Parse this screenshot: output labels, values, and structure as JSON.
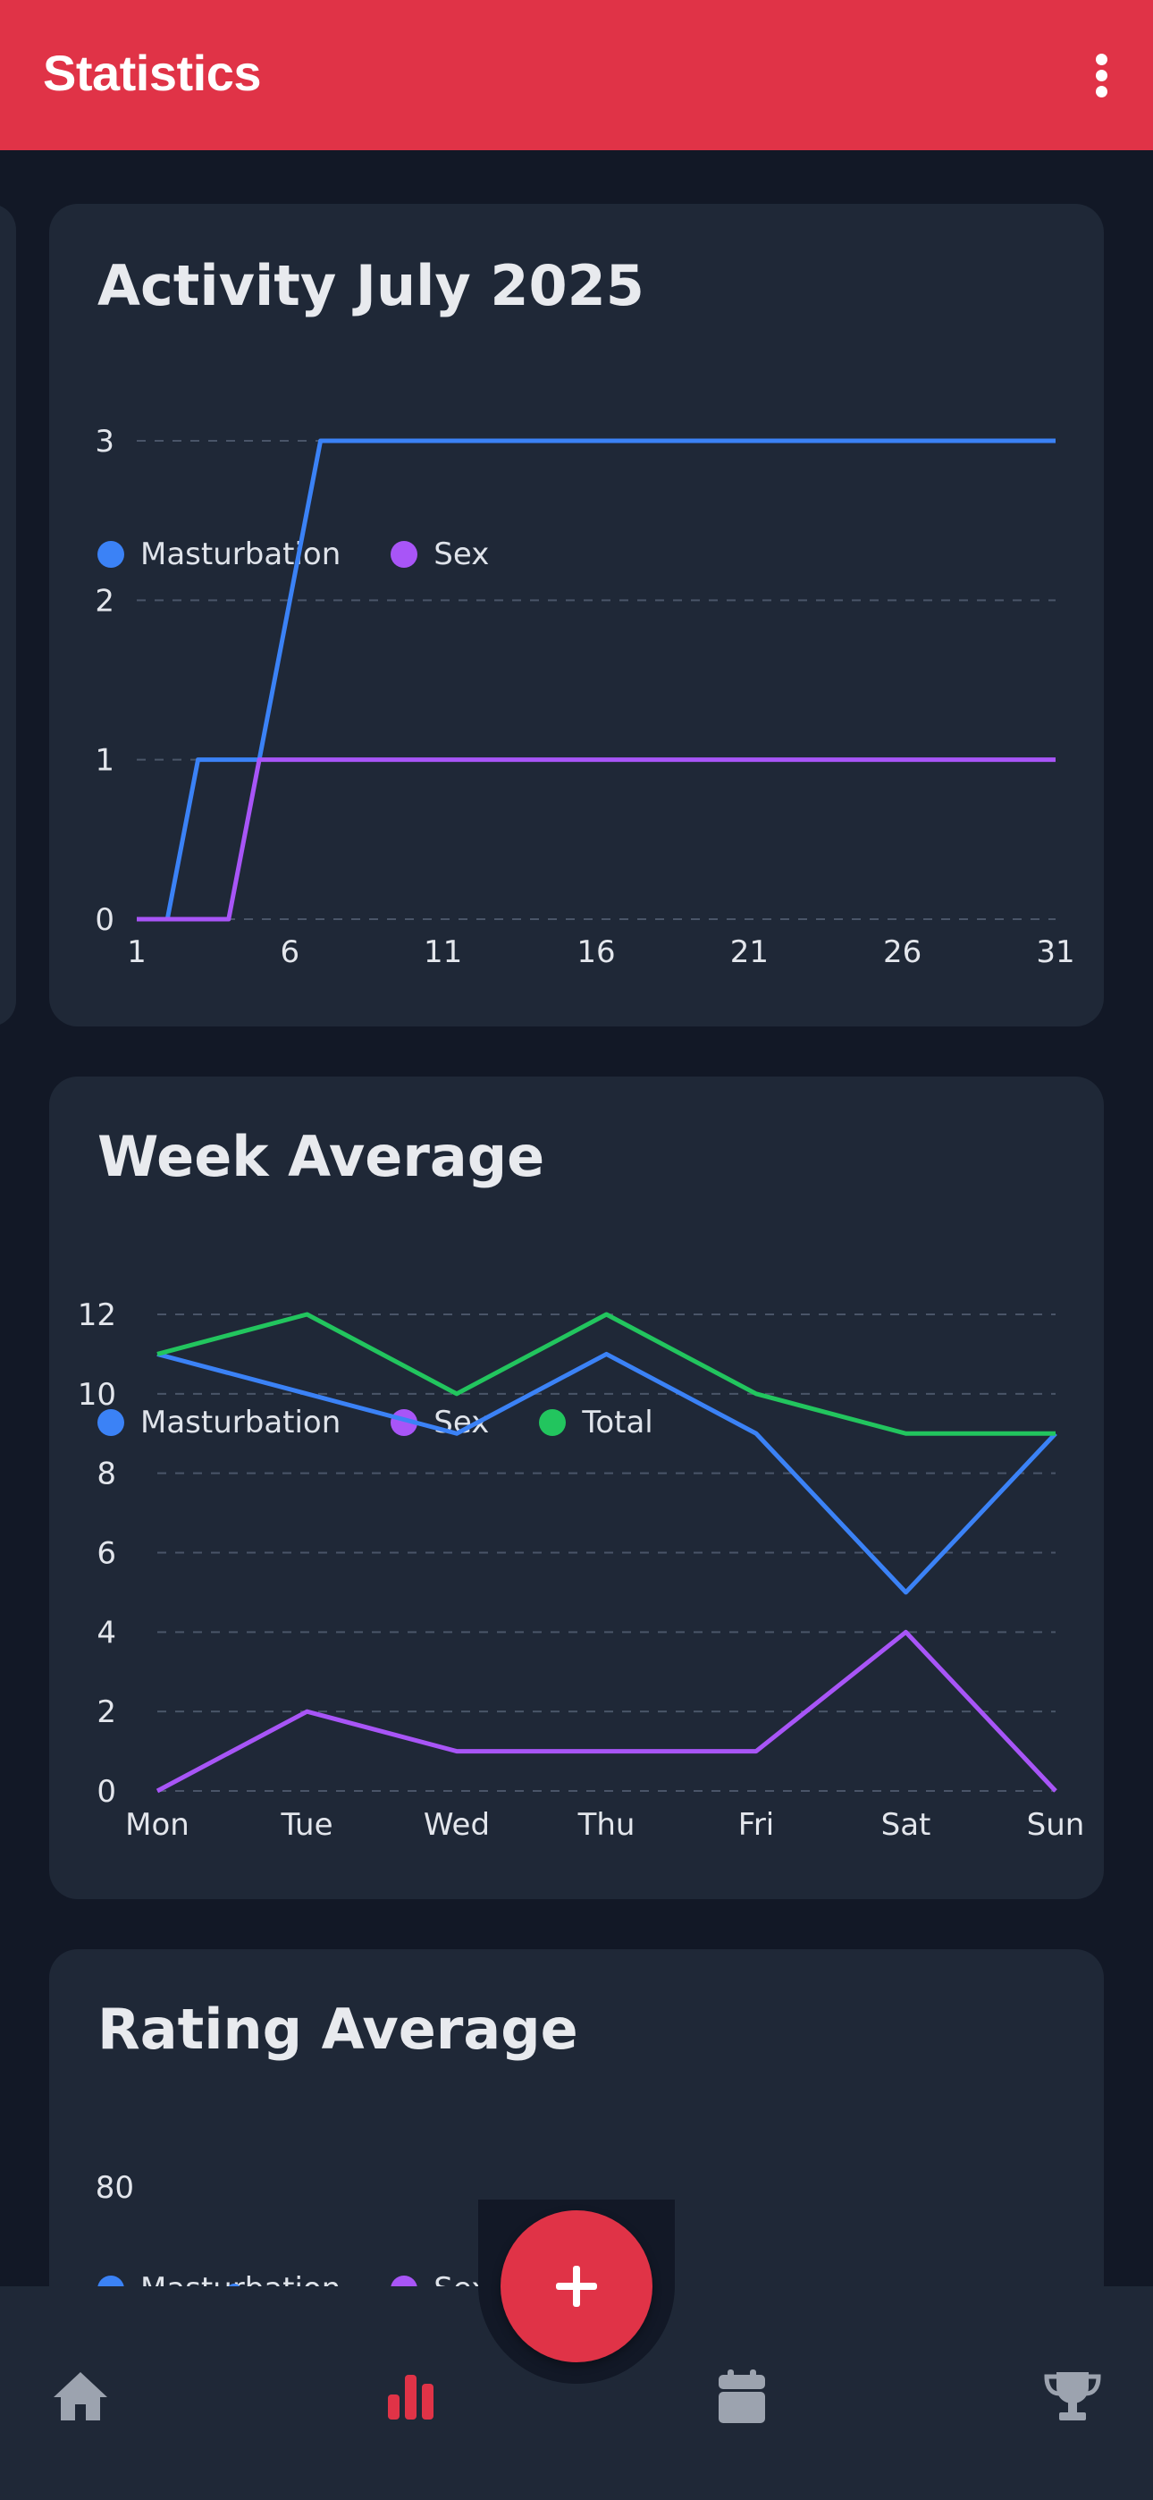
{
  "app_bar": {
    "title": "Statistics",
    "menu_icon": "more-vertical-icon",
    "background": "#e03347"
  },
  "colors": {
    "masturbation": "#3b82f6",
    "sex": "#a855f7",
    "total": "#22c55e",
    "card": "#1f2837",
    "page": "#121826",
    "accent": "#e03347",
    "nav_inactive": "#9ca3af"
  },
  "cards": {
    "activity": {
      "title": "Activity July 2025",
      "legend": [
        "Masturbation",
        "Sex"
      ]
    },
    "week": {
      "title": "Week Average",
      "legend": [
        "Masturbation",
        "Sex",
        "Total"
      ]
    },
    "rating": {
      "title": "Rating Average",
      "legend": [
        "Masturbation",
        "Sex"
      ]
    }
  },
  "chart_data": [
    {
      "type": "line",
      "title": "Activity July 2025",
      "x": [
        1,
        2,
        3,
        4,
        5,
        6,
        7,
        31
      ],
      "x_ticks": [
        "1",
        "6",
        "11",
        "16",
        "21",
        "26",
        "31"
      ],
      "xlim": [
        1,
        31
      ],
      "ylim": [
        0,
        3
      ],
      "y_ticks": [
        "0",
        "1",
        "2",
        "3"
      ],
      "grid": true,
      "legend_position": "top-left",
      "series": [
        {
          "name": "Masturbation",
          "color": "#3b82f6",
          "values": [
            0,
            0,
            1,
            1,
            1,
            2,
            3,
            3
          ]
        },
        {
          "name": "Sex",
          "color": "#a855f7",
          "values": [
            0,
            0,
            0,
            0,
            1,
            1,
            1,
            1
          ]
        }
      ]
    },
    {
      "type": "line",
      "title": "Week Average",
      "categories": [
        "Mon",
        "Tue",
        "Wed",
        "Thu",
        "Fri",
        "Sat",
        "Sun"
      ],
      "ylim": [
        0,
        12
      ],
      "y_ticks": [
        "0",
        "2",
        "4",
        "6",
        "8",
        "10",
        "12"
      ],
      "grid": true,
      "legend_position": "top-left",
      "series": [
        {
          "name": "Masturbation",
          "color": "#3b82f6",
          "values": [
            11,
            10,
            9,
            11,
            9,
            5,
            9
          ]
        },
        {
          "name": "Sex",
          "color": "#a855f7",
          "values": [
            0,
            2,
            1,
            1,
            1,
            4,
            0
          ]
        },
        {
          "name": "Total",
          "color": "#22c55e",
          "values": [
            11,
            12,
            10,
            12,
            10,
            9,
            9
          ]
        }
      ]
    },
    {
      "type": "line",
      "title": "Rating Average",
      "y_ticks": [
        "80"
      ],
      "legend_position": "top-left",
      "series": [
        {
          "name": "Masturbation",
          "color": "#3b82f6",
          "values": []
        },
        {
          "name": "Sex",
          "color": "#a855f7",
          "values": []
        }
      ]
    }
  ],
  "bottom_nav": {
    "items": [
      {
        "icon": "home-icon",
        "active": false
      },
      {
        "icon": "bar-chart-icon",
        "active": true
      },
      {
        "icon": "calendar-icon",
        "active": false
      },
      {
        "icon": "trophy-icon",
        "active": false
      }
    ],
    "fab_icon": "plus-icon"
  }
}
